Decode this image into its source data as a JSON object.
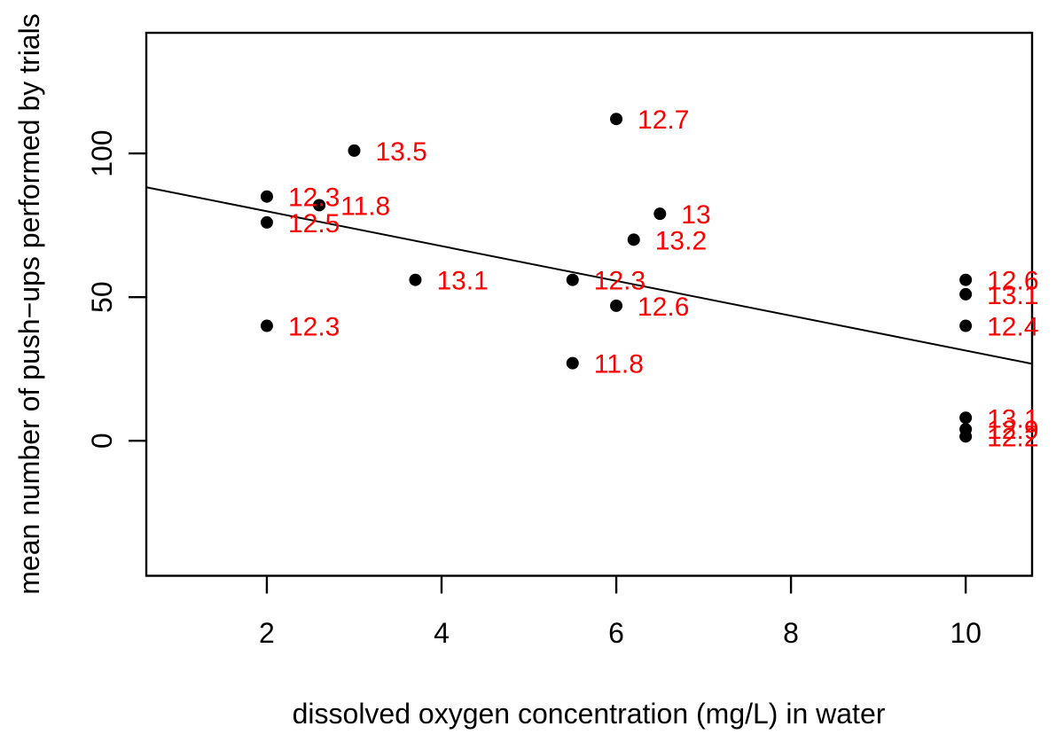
{
  "chart_data": {
    "type": "scatter",
    "title": "",
    "xlabel": "dissolved oxygen concentration (mg/L) in water",
    "ylabel": "mean number of push−ups performed by trials",
    "x_ticks": [
      2,
      4,
      6,
      8,
      10
    ],
    "y_ticks": [
      0,
      50,
      100
    ],
    "xlim": [
      0.62,
      10.76
    ],
    "ylim": [
      -47,
      142
    ],
    "grid": false,
    "legend": "none",
    "point_color": "#000000",
    "label_color": "#ff0000",
    "line_color": "#000000",
    "points": [
      {
        "x": 2,
        "y": 85,
        "label": "12.3"
      },
      {
        "x": 2,
        "y": 76,
        "label": "12.5"
      },
      {
        "x": 2,
        "y": 40,
        "label": "12.3"
      },
      {
        "x": 2.6,
        "y": 82,
        "label": "11.8"
      },
      {
        "x": 3,
        "y": 101,
        "label": "13.5"
      },
      {
        "x": 3.7,
        "y": 56,
        "label": "13.1"
      },
      {
        "x": 5.5,
        "y": 56,
        "label": "12.3"
      },
      {
        "x": 5.5,
        "y": 27,
        "label": "11.8"
      },
      {
        "x": 6,
        "y": 112,
        "label": "12.7"
      },
      {
        "x": 6,
        "y": 47,
        "label": "12.6"
      },
      {
        "x": 6.2,
        "y": 70,
        "label": "13.2"
      },
      {
        "x": 6.5,
        "y": 79,
        "label": "13"
      },
      {
        "x": 10,
        "y": 56,
        "label": "12.6"
      },
      {
        "x": 10,
        "y": 51,
        "label": "13.1"
      },
      {
        "x": 10,
        "y": 40,
        "label": "12.4"
      },
      {
        "x": 10,
        "y": 8,
        "label": "13.1"
      },
      {
        "x": 10,
        "y": 4,
        "label": "12.9"
      },
      {
        "x": 10,
        "y": 1.5,
        "label": "12.2"
      }
    ],
    "regression_line": {
      "slope": -6.06,
      "intercept": 92.0
    }
  }
}
